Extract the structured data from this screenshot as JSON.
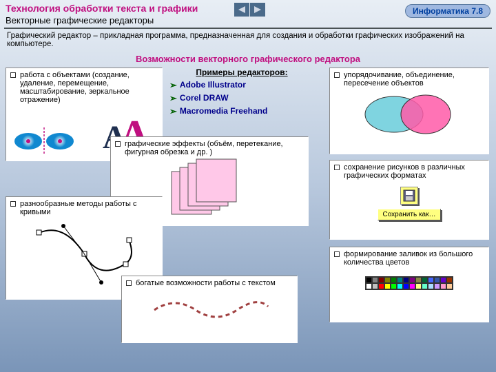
{
  "header": {
    "title1": "Технология обработки текста и графики",
    "title2": "Векторные графические редакторы",
    "badge": "Информатика   7.8"
  },
  "definition": "Графический редактор – прикладная программа, предназначенная для создания и обработки графических изображений на компьютере.",
  "subheading": "Возможности векторного графического редактора",
  "examples": {
    "title": "Примеры редакторов:",
    "items": [
      "Adobe Illustrator",
      "Corel DRAW",
      "Macromedia Freehand"
    ]
  },
  "box1": "работа с объектами (создание, удаление, перемещение, масштабирование, зеркальное отражение)",
  "box2": "упорядочивание, объединение, пересечение объектов",
  "box3": "графические эффекты (объём, перетекание, фигурная обрезка и др. )",
  "box4": "сохранение рисунков в различных графических форматах",
  "box5": "разнообразные методы работы с кривыми",
  "box6": "формирование заливок из большого количества цветов",
  "box7": "богатые возможности работы с текстом",
  "saveBtn": "Сохранить как…",
  "colors": {
    "pink": "#c01080",
    "navy": "#00008b",
    "green": "#006000",
    "overlap1": "#7fd4e0",
    "overlap2": "#ff5aa8"
  },
  "palette": [
    "#000",
    "#808080",
    "#800000",
    "#808000",
    "#008000",
    "#008080",
    "#000080",
    "#800080",
    "#888844",
    "#006633",
    "#4466ff",
    "#3355aa",
    "#6600cc",
    "#993300",
    "#fff",
    "#c0c0c0",
    "#ff0000",
    "#ffff00",
    "#00ff00",
    "#00ffff",
    "#0000ff",
    "#ff00ff",
    "#ffff88",
    "#66ffcc",
    "#aaddff",
    "#cc99ff",
    "#ff99cc",
    "#ffcc99"
  ]
}
